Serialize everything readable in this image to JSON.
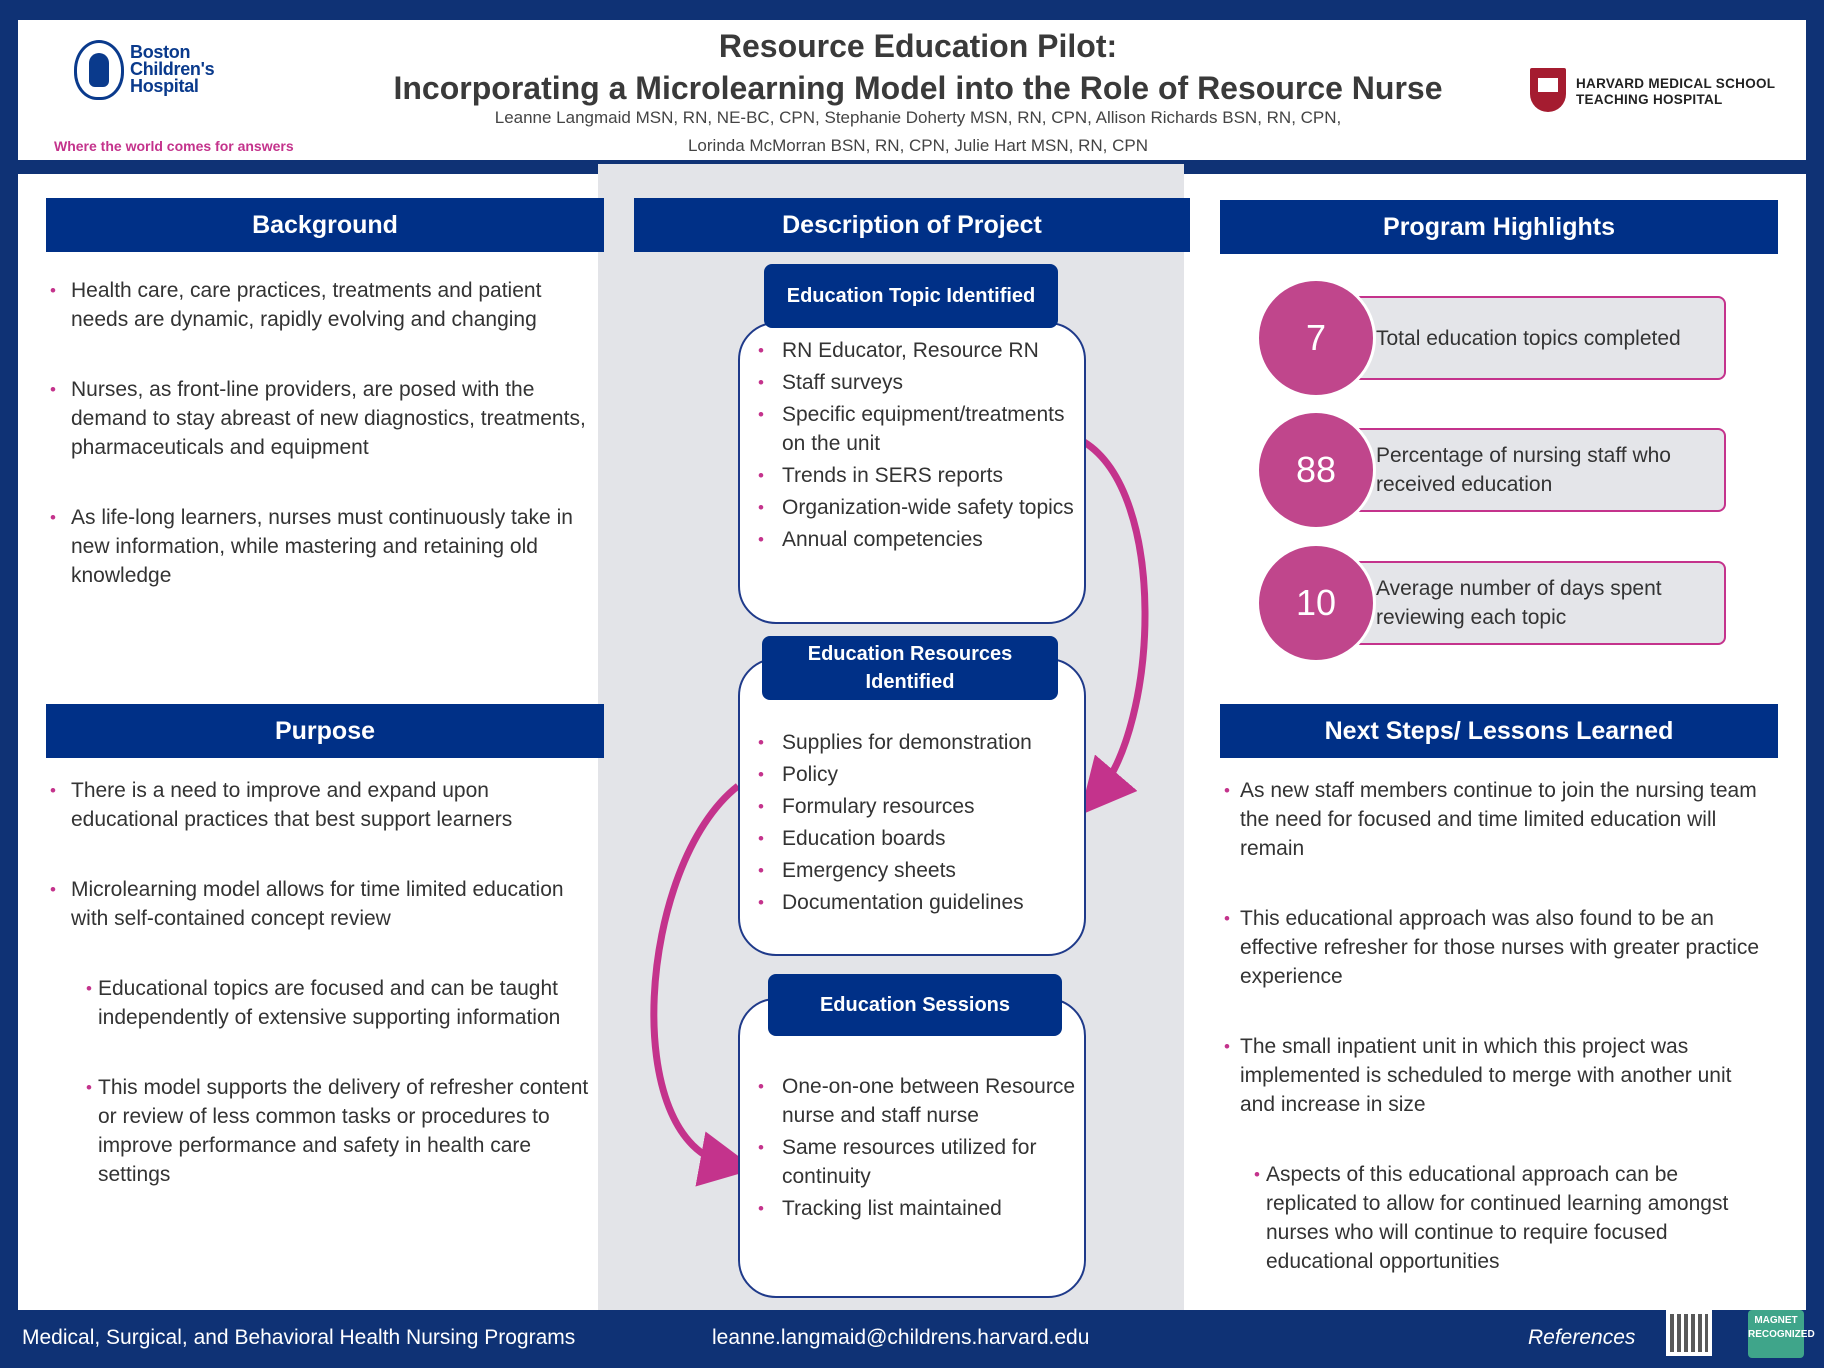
{
  "header": {
    "logo_name": "Boston\nChildren's\nHospital",
    "logo_tagline": "Where the world comes for answers",
    "title_line1": "Resource Education Pilot:",
    "title_line2": "Incorporating a Microlearning Model into the Role of Resource Nurse",
    "authors_line1": "Leanne Langmaid MSN, RN, NE-BC, CPN, Stephanie Doherty MSN, RN, CPN, Allison Richards BSN, RN, CPN,",
    "authors_line2": "Lorinda McMorran BSN, RN, CPN, Julie Hart MSN, RN, CPN",
    "hms_text": "HARVARD MEDICAL SCHOOL\nTEACHING HOSPITAL"
  },
  "background": {
    "title": "Background",
    "items": [
      "Health care, care practices, treatments and patient needs are dynamic, rapidly evolving and changing",
      "Nurses, as front-line providers, are posed with the demand to stay abreast of new diagnostics, treatments, pharmaceuticals and equipment",
      "As life-long learners, nurses must continuously take in new information, while mastering and retaining old knowledge"
    ]
  },
  "purpose": {
    "title": "Purpose",
    "items": [
      "There is a need to improve and expand upon educational practices that best support learners",
      "Microlearning model allows for time limited education with self-contained concept review"
    ],
    "subitems": [
      "Educational topics are focused and can be taught independently of extensive supporting information",
      "This model supports the delivery of refresher content or review of less common tasks or procedures to improve performance and safety in health care settings"
    ]
  },
  "description": {
    "title": "Description of Project",
    "boxes": [
      {
        "title": "Education Topic Identified",
        "items": [
          "RN Educator, Resource RN",
          "Staff surveys",
          "Specific equipment/treatments on the unit",
          "Trends in SERS reports",
          "Organization-wide safety topics",
          "Annual competencies"
        ]
      },
      {
        "title": "Education Resources Identified",
        "items": [
          "Supplies for demonstration",
          "Policy",
          "Formulary resources",
          "Education boards",
          "Emergency sheets",
          "Documentation guidelines"
        ]
      },
      {
        "title": "Education Sessions",
        "items": [
          "One-on-one between Resource nurse and staff nurse",
          "Same resources utilized for continuity",
          "Tracking list maintained"
        ]
      }
    ]
  },
  "highlights": {
    "title": "Program Highlights",
    "items": [
      {
        "value": "7",
        "label": "Total education topics completed"
      },
      {
        "value": "88",
        "label": "Percentage of nursing staff who received education"
      },
      {
        "value": "10",
        "label": "Average number of days spent reviewing each topic"
      }
    ]
  },
  "next_steps": {
    "title": "Next Steps/ Lessons Learned",
    "items": [
      "As new staff members continue to join the nursing team the need for focused and time limited education will remain",
      "This educational approach was also found to be an effective refresher for those nurses with greater practice experience",
      "The small inpatient unit in which this project was implemented is scheduled to merge with another unit and increase in size"
    ],
    "subitems": [
      "Aspects of this educational approach can be replicated to allow for continued learning amongst nurses who will continue to require focused educational opportunities"
    ]
  },
  "footer": {
    "program": "Medical, Surgical, and Behavioral Health Nursing Programs",
    "email": "leanne.langmaid@childrens.harvard.edu",
    "references": "References",
    "magnet": "MAGNET\nRECOGNIZED"
  },
  "colors": {
    "navy": "#003087",
    "magenta": "#c4338c",
    "gray": "#e3e4e8"
  }
}
